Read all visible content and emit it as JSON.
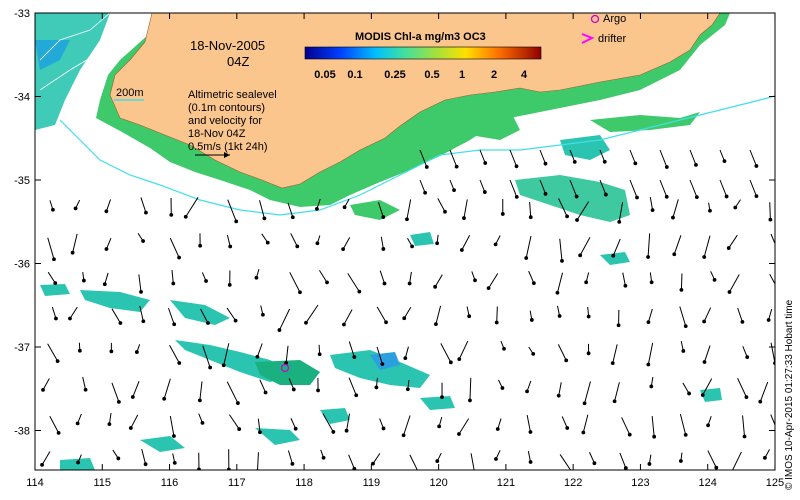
{
  "map": {
    "date": "18-Nov-2005",
    "time": "04Z",
    "contour_label": "200m",
    "altimetry_lines": [
      "Altimetric sealevel",
      "(0.1m contours)",
      "and velocity for",
      "18-Nov 04Z",
      "0.5m/s (1kt 24h)"
    ],
    "colorbar": {
      "title": "MODIS Chl-a mg/m3 OC3",
      "ticks": [
        "0.05",
        "0.1",
        "0.25",
        "0.5",
        "1",
        "2",
        "4"
      ]
    },
    "legend": {
      "argo": "Argo",
      "drifter": "drifter",
      "argo_color": "#cc00cc",
      "drifter_color": "#ff00ff"
    },
    "x_ticks": [
      "114",
      "115",
      "116",
      "117",
      "118",
      "119",
      "120",
      "121",
      "122",
      "123",
      "124",
      "125"
    ],
    "y_ticks": [
      "-33",
      "-34",
      "-35",
      "-36",
      "-37",
      "-38"
    ],
    "credit": "© IMOS 10-Apr-2015 01:27:33 Hobart time",
    "colors": {
      "land": "#fbc58e",
      "coast_current": "#40e0e8",
      "chl_green": "#3ec96a",
      "chl_teal": "#2bc4b0"
    }
  }
}
